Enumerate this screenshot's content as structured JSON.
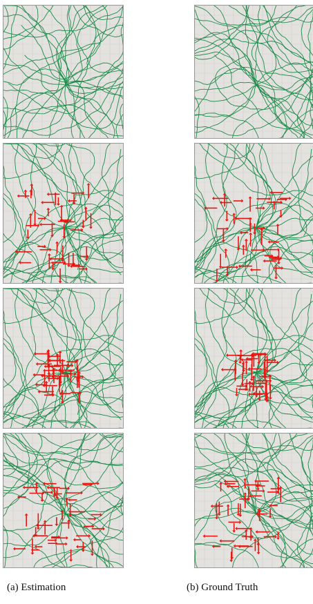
{
  "captions": [
    "(a) Estimation",
    "(b) Ground Truth"
  ]
}
